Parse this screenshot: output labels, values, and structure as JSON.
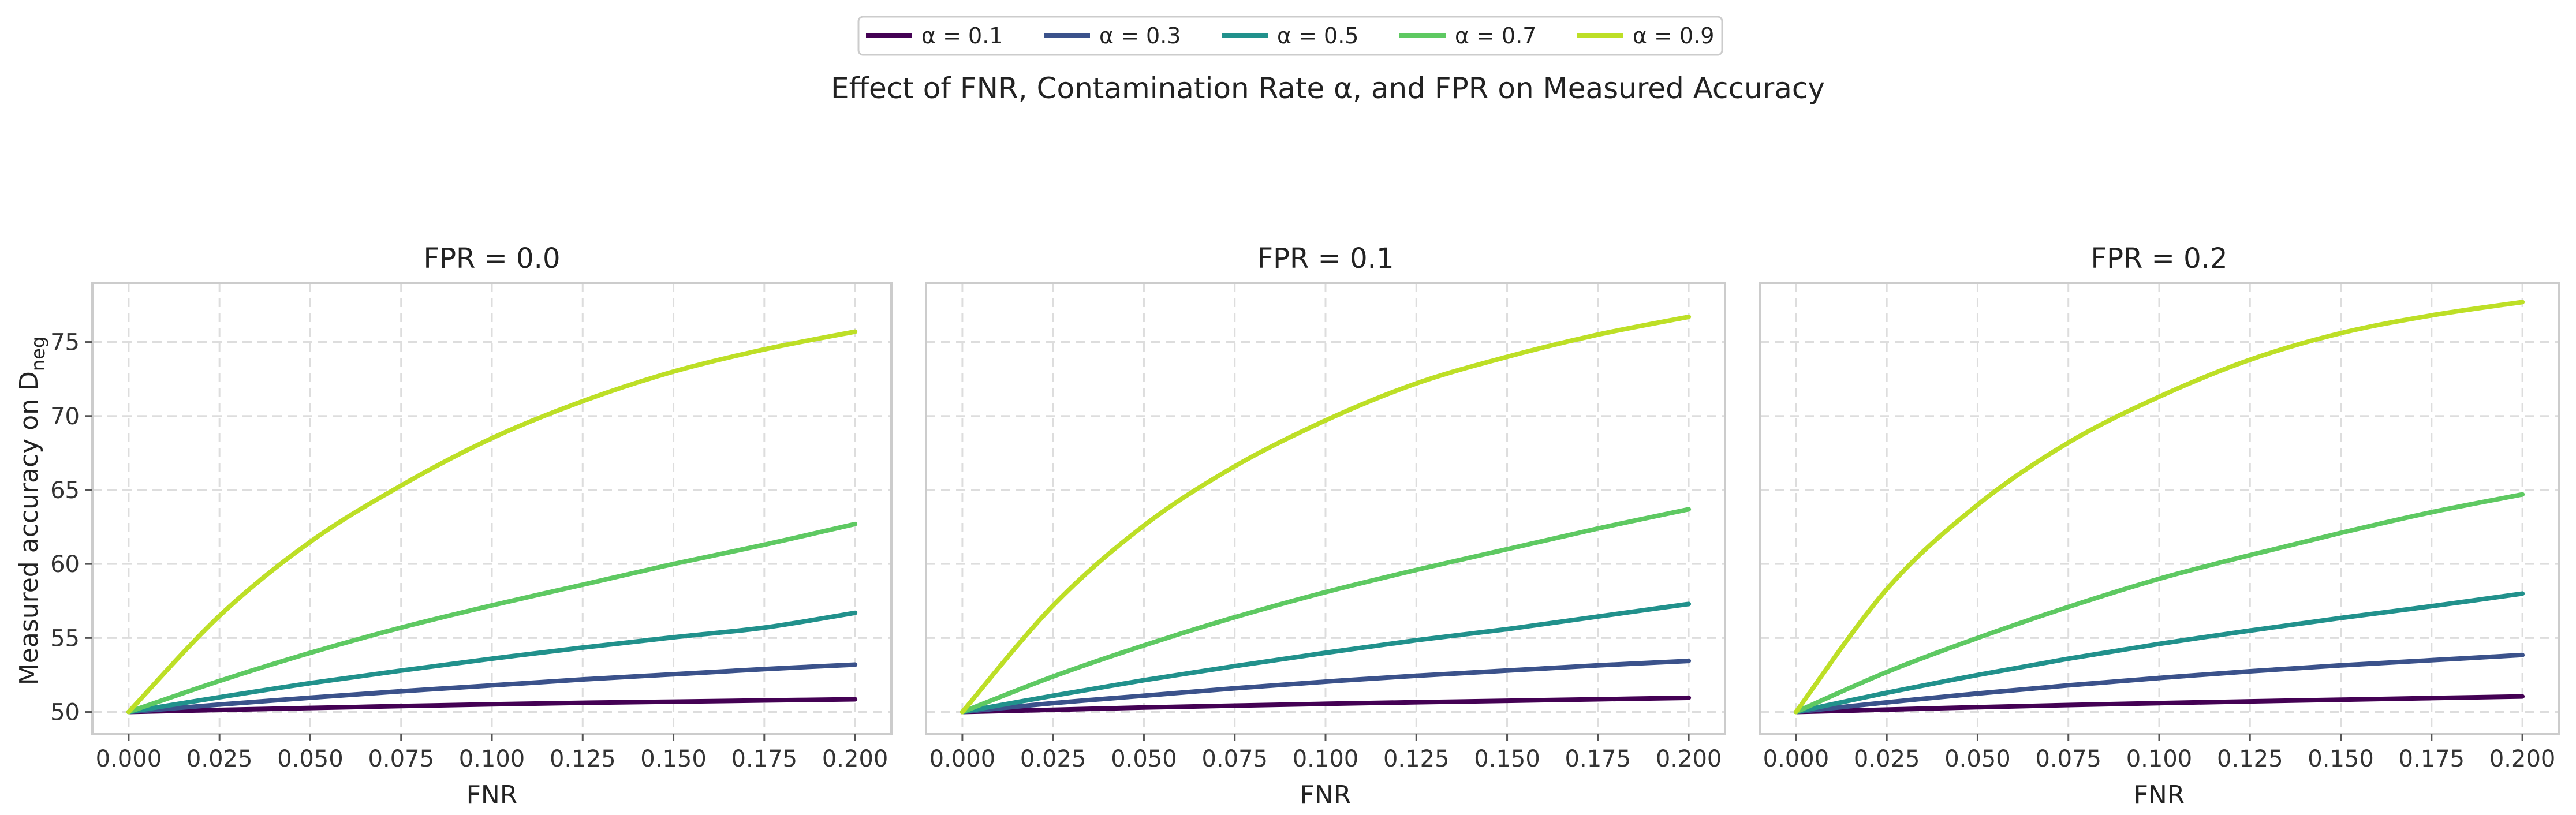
{
  "chart_data": {
    "type": "line",
    "title": "Effect of FNR, Contamination Rate α, and FPR on Measured Accuracy",
    "legend": {
      "placement": "top-center",
      "entries": [
        "α = 0.1",
        "α = 0.3",
        "α = 0.5",
        "α = 0.7",
        "α = 0.9"
      ]
    },
    "colors": [
      "#440154",
      "#3b528b",
      "#21918c",
      "#5ec962",
      "#bddf26"
    ],
    "xlabel": "FNR",
    "ylabel": "Measured accuracy on D",
    "ylabel_subscript": "neg",
    "xlim": [
      -0.01,
      0.21
    ],
    "ylim": [
      48.5,
      79
    ],
    "xticks": [
      0.0,
      0.025,
      0.05,
      0.075,
      0.1,
      0.125,
      0.15,
      0.175,
      0.2
    ],
    "xtick_labels": [
      "0.000",
      "0.025",
      "0.050",
      "0.075",
      "0.100",
      "0.125",
      "0.150",
      "0.175",
      "0.200"
    ],
    "yticks": [
      50,
      55,
      60,
      65,
      70,
      75
    ],
    "ytick_labels": [
      "50",
      "55",
      "60",
      "65",
      "70",
      "75"
    ],
    "grid": true,
    "x": [
      0.0,
      0.025,
      0.05,
      0.075,
      0.1,
      0.125,
      0.15,
      0.175,
      0.2
    ],
    "panels": [
      {
        "title": "FPR = 0.0",
        "series": [
          {
            "name": "α = 0.1",
            "values": [
              50.0,
              50.14,
              50.27,
              50.4,
              50.52,
              50.62,
              50.7,
              50.78,
              50.86
            ]
          },
          {
            "name": "α = 0.3",
            "values": [
              50.0,
              50.5,
              50.97,
              51.4,
              51.8,
              52.2,
              52.55,
              52.9,
              53.2
            ]
          },
          {
            "name": "α = 0.5",
            "values": [
              50.0,
              51.0,
              51.95,
              52.8,
              53.6,
              54.35,
              55.05,
              55.7,
              56.7
            ]
          },
          {
            "name": "α = 0.7",
            "values": [
              50.0,
              52.1,
              54.0,
              55.7,
              57.2,
              58.6,
              60.0,
              61.3,
              62.7
            ]
          },
          {
            "name": "α = 0.9",
            "values": [
              50.0,
              56.5,
              61.5,
              65.3,
              68.5,
              71.0,
              73.0,
              74.5,
              75.7
            ]
          }
        ]
      },
      {
        "title": "FPR = 0.1",
        "series": [
          {
            "name": "α = 0.1",
            "values": [
              50.0,
              50.15,
              50.3,
              50.43,
              50.55,
              50.66,
              50.76,
              50.86,
              50.96
            ]
          },
          {
            "name": "α = 0.3",
            "values": [
              50.0,
              50.6,
              51.1,
              51.6,
              52.05,
              52.45,
              52.8,
              53.15,
              53.45
            ]
          },
          {
            "name": "α = 0.5",
            "values": [
              50.0,
              51.1,
              52.15,
              53.1,
              54.0,
              54.85,
              55.6,
              56.45,
              57.3
            ]
          },
          {
            "name": "α = 0.7",
            "values": [
              50.0,
              52.4,
              54.5,
              56.4,
              58.1,
              59.6,
              61.0,
              62.4,
              63.7
            ]
          },
          {
            "name": "α = 0.9",
            "values": [
              50.0,
              57.2,
              62.6,
              66.6,
              69.7,
              72.2,
              74.0,
              75.5,
              76.7
            ]
          }
        ]
      },
      {
        "title": "FPR = 0.2",
        "series": [
          {
            "name": "α = 0.1",
            "values": [
              50.0,
              50.16,
              50.32,
              50.47,
              50.6,
              50.72,
              50.83,
              50.94,
              51.05
            ]
          },
          {
            "name": "α = 0.3",
            "values": [
              50.0,
              50.65,
              51.25,
              51.8,
              52.3,
              52.75,
              53.15,
              53.5,
              53.85
            ]
          },
          {
            "name": "α = 0.5",
            "values": [
              50.0,
              51.3,
              52.5,
              53.6,
              54.6,
              55.5,
              56.35,
              57.15,
              58.0
            ]
          },
          {
            "name": "α = 0.7",
            "values": [
              50.0,
              52.7,
              55.0,
              57.1,
              59.0,
              60.6,
              62.1,
              63.5,
              64.7
            ]
          },
          {
            "name": "α = 0.9",
            "values": [
              50.0,
              58.3,
              64.0,
              68.2,
              71.3,
              73.8,
              75.6,
              76.8,
              77.7
            ]
          }
        ]
      }
    ]
  }
}
